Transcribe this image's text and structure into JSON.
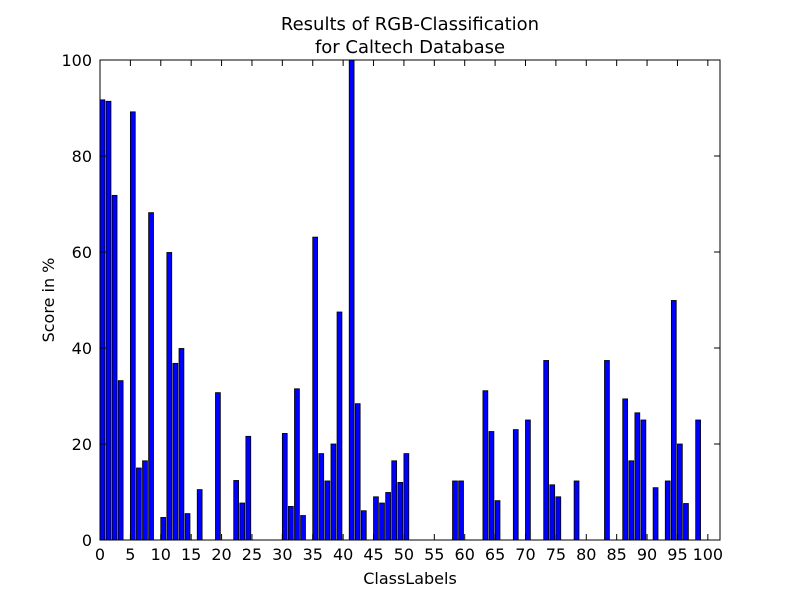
{
  "chart_data": {
    "type": "bar",
    "title": "Results of RGB-Classification\nfor Caltech Database",
    "title_lines": [
      "Results of RGB-Classification",
      "for Caltech Database"
    ],
    "xlabel": "ClassLabels",
    "ylabel": "Score in %",
    "xlim": [
      0,
      102
    ],
    "ylim": [
      0,
      100
    ],
    "xticks": [
      0,
      5,
      10,
      15,
      20,
      25,
      30,
      35,
      40,
      45,
      50,
      55,
      60,
      65,
      70,
      75,
      80,
      85,
      90,
      95,
      100
    ],
    "yticks": [
      0,
      20,
      40,
      60,
      80,
      100
    ],
    "grid": false,
    "bar_color": "#0000ff",
    "bar_edge_color": "#000000",
    "x": [
      0,
      1,
      2,
      3,
      4,
      5,
      6,
      7,
      8,
      9,
      10,
      11,
      12,
      13,
      14,
      15,
      16,
      17,
      18,
      19,
      20,
      21,
      22,
      23,
      24,
      25,
      26,
      27,
      28,
      29,
      30,
      31,
      32,
      33,
      34,
      35,
      36,
      37,
      38,
      39,
      40,
      41,
      42,
      43,
      44,
      45,
      46,
      47,
      48,
      49,
      50,
      51,
      52,
      53,
      54,
      55,
      56,
      57,
      58,
      59,
      60,
      61,
      62,
      63,
      64,
      65,
      66,
      67,
      68,
      69,
      70,
      71,
      72,
      73,
      74,
      75,
      76,
      77,
      78,
      79,
      80,
      81,
      82,
      83,
      84,
      85,
      86,
      87,
      88,
      89,
      90,
      91,
      92,
      93,
      94,
      95,
      96,
      97,
      98,
      99,
      100,
      101
    ],
    "values": [
      91.7,
      91.4,
      71.8,
      33.2,
      0,
      89.2,
      15,
      16.5,
      68.2,
      0,
      4.7,
      59.9,
      36.8,
      39.9,
      5.5,
      0,
      10.5,
      0,
      0,
      30.7,
      0,
      0,
      12.4,
      7.7,
      21.6,
      0,
      0,
      0,
      0,
      0,
      22.2,
      7,
      31.5,
      5.1,
      0,
      63.1,
      18,
      12.3,
      20,
      47.5,
      0,
      100,
      28.4,
      6.1,
      0,
      9,
      7.7,
      9.9,
      16.5,
      12,
      18,
      0,
      0,
      0,
      0,
      0,
      0,
      0,
      12.3,
      12.3,
      0,
      0,
      0,
      31.1,
      22.6,
      8.2,
      0,
      0,
      23,
      0,
      25,
      0,
      0,
      37.4,
      11.5,
      9,
      0,
      0,
      12.3,
      0,
      0,
      0,
      0,
      37.4,
      0,
      0,
      29.4,
      16.5,
      26.5,
      25,
      0,
      10.9,
      0,
      12.3,
      49.9,
      20,
      7.6,
      0,
      25,
      0,
      0,
      0
    ]
  }
}
